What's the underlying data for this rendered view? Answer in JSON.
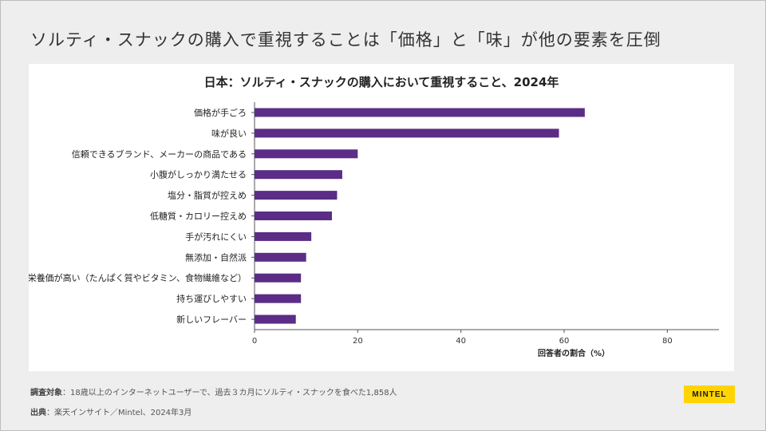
{
  "slide": {
    "title": "ソルティ・スナックの購入で重視することは「価格」と「味」が他の要素を圧倒"
  },
  "chart_data": {
    "type": "bar",
    "orientation": "horizontal",
    "title": "日本：ソルティ・スナックの購入において重視すること、2024年",
    "xlabel": "回答者の割合（%）",
    "ylabel": "",
    "xlim": [
      0,
      90
    ],
    "xticks": [
      0,
      20,
      40,
      60,
      80
    ],
    "grid": false,
    "categories": [
      "価格が手ごろ",
      "味が良い",
      "信頼できるブランド、メーカーの商品である",
      "小腹がしっかり満たせる",
      "塩分・脂質が控えめ",
      "低糖質・カロリー控えめ",
      "手が汚れにくい",
      "無添加・自然派",
      "栄養価が高い（たんぱく質やビタミン、食物繊維など）",
      "持ち運びしやすい",
      "新しいフレーバー"
    ],
    "values": [
      64,
      59,
      20,
      17,
      16,
      15,
      11,
      10,
      9,
      9,
      8
    ],
    "bar_color": "#5b2d86"
  },
  "footer": {
    "survey_label": "調査対象",
    "survey_text": "：18歳以上のインターネットユーザーで、過去３カ月にソルティ・スナックを食べた1,858人",
    "source_label": "出典",
    "source_text": "：楽天インサイト／Mintel、2024年3月",
    "logo": "MINTEL"
  }
}
